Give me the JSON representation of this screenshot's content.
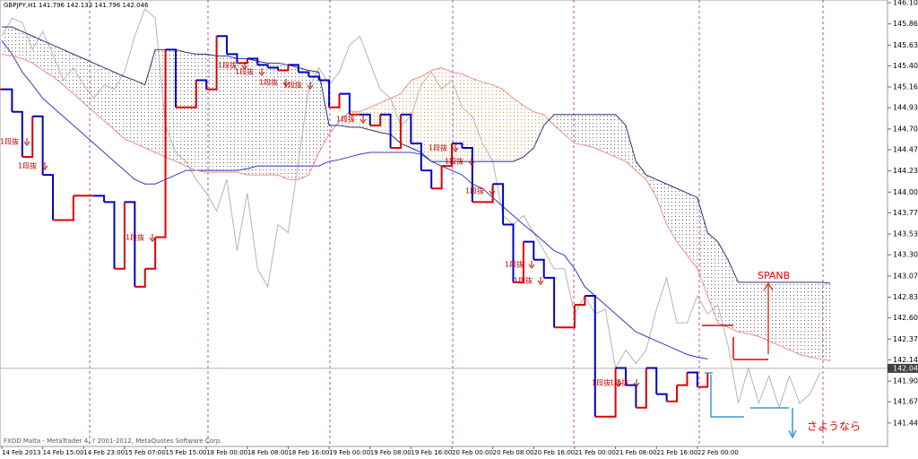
{
  "chart_data": {
    "type": "line",
    "title": "GBPJPY,H1  141.796 142.133 141.796 142.046",
    "footer": "FXDD Malta - MetaTrader 4, ? 2001-2012, MetaQuotes Software Corp.",
    "categories": [
      "14 Feb 2013",
      null,
      null,
      null,
      "14 Feb 15:00",
      null,
      null,
      null,
      "14 Feb 23:00",
      null,
      null,
      null,
      "15 Feb 07:00",
      null,
      null,
      null,
      "15 Feb 15:00",
      null,
      null,
      null,
      "18 Feb 00:00",
      null,
      null,
      null,
      "18 Feb 08:00",
      null,
      null,
      null,
      "18 Feb 16:00",
      null,
      null,
      null,
      "19 Feb 00:00",
      null,
      null,
      null,
      "19 Feb 08:00",
      null,
      null,
      null,
      "19 Feb 16:00",
      null,
      null,
      null,
      "20 Feb 00:00",
      null,
      null,
      null,
      "20 Feb 08:00",
      null,
      null,
      null,
      "20 Feb 16:00",
      null,
      null,
      null,
      "21 Feb 00:00",
      null,
      null,
      null,
      "21 Feb 08:00",
      null,
      null,
      null,
      "21 Feb 16:00",
      null,
      null,
      null,
      "22 Feb 00:00",
      null,
      null,
      null,
      null,
      null,
      null,
      null,
      null,
      null,
      null,
      null,
      null,
      null,
      null,
      null,
      null,
      null,
      null
    ],
    "ylim": [
      141.18,
      146.13
    ],
    "yticks": [
      {
        "value": 146.1,
        "label": "146.100"
      },
      {
        "value": 145.865,
        "label": "145.865"
      },
      {
        "value": 145.63,
        "label": "145.630"
      },
      {
        "value": 145.4,
        "label": "145.400"
      },
      {
        "value": 145.165,
        "label": "145.165"
      },
      {
        "value": 144.935,
        "label": "144.935"
      },
      {
        "value": 144.7,
        "label": "144.700"
      },
      {
        "value": 144.47,
        "label": "144.470"
      },
      {
        "value": 144.235,
        "label": "144.235"
      },
      {
        "value": 144,
        "label": "144.000"
      },
      {
        "value": 143.77,
        "label": "143.770"
      },
      {
        "value": 143.535,
        "label": "143.535"
      },
      {
        "value": 143.305,
        "label": "143.305"
      },
      {
        "value": 143.07,
        "label": "143.070"
      },
      {
        "value": 142.835,
        "label": "142.835"
      },
      {
        "value": 142.605,
        "label": "142.605"
      },
      {
        "value": 142.37,
        "label": "142.370"
      },
      {
        "value": 142.14,
        "label": "142.140"
      },
      {
        "value": 141.905,
        "label": "141.905"
      },
      {
        "value": 141.675,
        "label": "141.675"
      },
      {
        "value": 141.44,
        "label": "141.440"
      }
    ],
    "current_price": {
      "value": 142.046,
      "label": "142.046"
    },
    "series": [
      {
        "color": "#b4b4b4",
        "values": [
          145.73,
          145.93,
          145.88,
          145.58,
          145.78,
          145.53,
          145.24,
          145.38,
          145.19,
          145.04,
          145.19,
          145.14,
          145.33,
          145.73,
          146.03,
          145.93,
          144.74,
          144.44,
          144.34,
          144.14,
          143.99,
          143.79,
          144.14,
          143.35,
          143.99,
          143.15,
          142.95,
          143.64,
          143.55,
          144.34,
          145.14,
          145.38,
          145.19,
          145.33,
          145.63,
          145.73,
          145.43,
          145.14,
          145.04,
          144.74,
          144.84,
          145.19,
          145.33,
          145.14,
          145.24,
          144.94,
          144.84,
          144.54,
          144.34,
          143.74,
          143.64,
          143.74,
          143.55,
          143.35,
          143.15,
          143.15,
          142.65,
          142.85,
          142.65,
          142.7,
          142.05,
          142.25,
          142.1,
          142.25,
          142.7,
          143.05,
          142.55,
          142.55,
          142.85,
          142.65,
          142.75,
          142.3,
          141.66,
          142.05,
          141.66,
          141.96,
          141.61,
          141.96,
          141.66,
          141.76,
          142.0,
          null,
          null,
          null,
          null,
          null,
          null
        ]
      },
      {
        "color": "#3838c8",
        "values": [
          145.68,
          145.53,
          145.33,
          145.19,
          145.04,
          144.94,
          144.84,
          144.74,
          144.64,
          144.54,
          144.44,
          144.34,
          144.24,
          144.14,
          144.09,
          144.09,
          144.14,
          144.19,
          144.24,
          144.24,
          144.24,
          144.24,
          144.24,
          144.24,
          144.26,
          144.29,
          144.29,
          144.29,
          144.29,
          144.29,
          144.29,
          144.29,
          144.34,
          144.36,
          144.39,
          144.42,
          144.44,
          144.44,
          144.44,
          144.44,
          144.44,
          144.42,
          144.34,
          144.29,
          144.24,
          144.19,
          144.09,
          144.04,
          143.94,
          143.84,
          143.74,
          143.64,
          143.55,
          143.45,
          143.35,
          143.3,
          143.15,
          142.95,
          142.85,
          142.75,
          142.65,
          142.55,
          142.45,
          142.4,
          142.35,
          142.3,
          142.25,
          142.2,
          142.17,
          142.15,
          null,
          null,
          null,
          null,
          null,
          null,
          null,
          null,
          null,
          null,
          null,
          null,
          null,
          null,
          null,
          null,
          null
        ]
      },
      {
        "color": "#f08c8c",
        "values": [
          145.53,
          145.51,
          145.48,
          145.43,
          145.35,
          145.28,
          145.19,
          145.09,
          144.99,
          144.89,
          144.79,
          144.69,
          144.59,
          144.54,
          144.49,
          144.44,
          144.39,
          144.34,
          144.29,
          144.24,
          144.22,
          144.22,
          144.22,
          144.22,
          144.19,
          144.19,
          144.19,
          144.19,
          144.14,
          144.14,
          144.19,
          144.44,
          144.64,
          144.79,
          144.89,
          144.89,
          144.94,
          144.99,
          145.04,
          145.09,
          145.24,
          145.28,
          145.35,
          145.38,
          145.33,
          145.31,
          145.26,
          145.22,
          145.19,
          145.14,
          145.04,
          144.96,
          144.89,
          144.86,
          144.74,
          144.64,
          144.54,
          144.52,
          144.49,
          144.44,
          144.39,
          144.34,
          144.24,
          144.14,
          143.94,
          143.64,
          143.45,
          143.3,
          143.15,
          142.85,
          142.55,
          142.5,
          142.45,
          142.43,
          142.4,
          142.35,
          142.3,
          142.25,
          142.2,
          142.17,
          142.15,
          142.13,
          null,
          null,
          null,
          null,
          null
        ]
      },
      {
        "color": "#30307a",
        "values": [
          145.83,
          145.83,
          145.78,
          145.73,
          145.68,
          145.63,
          145.58,
          145.53,
          145.48,
          145.43,
          145.38,
          145.33,
          145.28,
          145.24,
          145.19,
          145.58,
          145.58,
          145.58,
          145.55,
          145.53,
          145.53,
          145.51,
          145.51,
          145.48,
          145.48,
          145.45,
          145.43,
          145.43,
          145.41,
          145.38,
          145.35,
          145.33,
          144.74,
          144.74,
          144.72,
          144.72,
          144.69,
          144.66,
          144.64,
          144.54,
          144.49,
          144.44,
          144.34,
          144.34,
          144.34,
          144.34,
          144.34,
          144.34,
          144.34,
          144.34,
          144.34,
          144.39,
          144.49,
          144.74,
          144.86,
          144.86,
          144.86,
          144.86,
          144.86,
          144.86,
          144.86,
          144.74,
          144.34,
          144.19,
          144.14,
          144.09,
          144.04,
          143.99,
          143.94,
          143.55,
          143.45,
          143.25,
          143.0,
          143.0,
          143.0,
          143.0,
          143.0,
          143.0,
          143.0,
          143.0,
          143.0,
          142.99,
          null,
          null,
          null,
          null,
          null
        ]
      },
      {
        "style": "step",
        "up_color": "#e00000",
        "down_color": "#0000c8",
        "values": [
          145.14,
          144.89,
          144.39,
          144.84,
          144.19,
          143.69,
          143.69,
          143.96,
          143.96,
          143.96,
          143.89,
          143.15,
          143.89,
          142.95,
          143.15,
          143.5,
          145.58,
          144.94,
          144.94,
          145.24,
          145.14,
          145.73,
          145.53,
          145.43,
          145.48,
          145.41,
          145.38,
          145.35,
          145.41,
          145.33,
          145.28,
          145.24,
          144.94,
          145.09,
          144.86,
          144.86,
          144.74,
          144.86,
          144.49,
          144.86,
          144.54,
          144.24,
          144.04,
          144.29,
          144.54,
          144.49,
          143.89,
          143.89,
          144.09,
          143.64,
          143.0,
          143.45,
          143.25,
          143.05,
          142.5,
          142.5,
          142.75,
          142.85,
          141.51,
          141.51,
          142.05,
          141.86,
          141.61,
          142.05,
          141.76,
          141.68,
          141.86,
          142.0,
          141.84,
          142.0,
          null,
          null,
          null,
          null,
          null,
          null,
          null,
          null,
          null,
          null,
          null,
          null,
          null,
          null,
          null,
          null,
          null
        ]
      }
    ],
    "cloud": {
      "between": [
        2,
        3
      ],
      "up_color": "#d2aa6e",
      "down_color": "#7a7a7a"
    },
    "annotations": [
      "1段抜",
      "1段抜",
      "1段抜",
      "1段抜",
      "1段抜",
      "1段抜",
      "1段抜",
      "1段抜",
      "1段抜",
      "1段抜",
      "1段抜",
      "1段抜",
      "1段抜",
      "1段抜",
      "1段抜"
    ],
    "notes": [
      "SPANB",
      "さようなら"
    ]
  }
}
